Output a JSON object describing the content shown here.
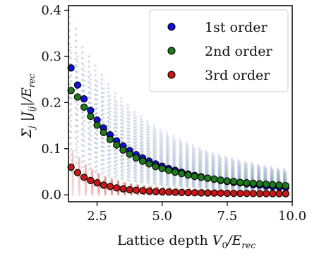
{
  "chart_data": {
    "type": "scatter",
    "title": "",
    "xlabel": "Lattice depth V₀/E_rec",
    "ylabel": "Σ_j |J_ij|/E_rec",
    "xlim": [
      1.4,
      10.0
    ],
    "ylim": [
      -0.015,
      0.41
    ],
    "xticks": [
      2.5,
      5.0,
      7.5,
      10.0
    ],
    "xtick_labels": [
      "2.5",
      "5.0",
      "7.5",
      "10.0"
    ],
    "yticks": [
      0.0,
      0.1,
      0.2,
      0.3,
      0.4
    ],
    "ytick_labels": [
      "0.0",
      "0.1",
      "0.2",
      "0.3",
      "0.4"
    ],
    "grid": false,
    "legend_position": "top-right",
    "x": [
      1.5,
      1.75,
      2.0,
      2.25,
      2.5,
      2.75,
      3.0,
      3.25,
      3.5,
      3.75,
      4.0,
      4.25,
      4.5,
      4.75,
      5.0,
      5.25,
      5.5,
      5.75,
      6.0,
      6.25,
      6.5,
      6.75,
      7.0,
      7.25,
      7.5,
      7.75,
      8.0,
      8.25,
      8.5,
      8.75,
      9.0,
      9.25,
      9.5,
      9.75
    ],
    "series": [
      {
        "name": "1st order",
        "color": "#1010d8",
        "values": [
          0.275,
          0.238,
          0.208,
          0.183,
          0.162,
          0.145,
          0.13,
          0.117,
          0.106,
          0.096,
          0.087,
          0.08,
          0.073,
          0.067,
          0.062,
          0.057,
          0.053,
          0.049,
          0.045,
          0.042,
          0.039,
          0.036,
          0.034,
          0.031,
          0.029,
          0.027,
          0.026,
          0.024,
          0.022,
          0.021,
          0.019,
          0.018,
          0.017,
          0.016
        ],
        "spread_top": [
          0.4,
          0.36,
          0.32,
          0.3,
          0.28,
          0.26,
          0.24,
          0.22,
          0.21,
          0.195,
          0.18,
          0.17,
          0.16,
          0.15,
          0.14,
          0.135,
          0.128,
          0.12,
          0.113,
          0.107,
          0.101,
          0.096,
          0.091,
          0.087,
          0.083,
          0.079,
          0.075,
          0.072,
          0.069,
          0.066,
          0.063,
          0.061,
          0.058,
          0.056
        ],
        "spread_bottom": [
          0.08,
          0.07,
          0.06,
          0.055,
          0.05,
          0.046,
          0.042,
          0.039,
          0.036,
          0.033,
          0.031,
          0.029,
          0.027,
          0.025,
          0.023,
          0.022,
          0.021,
          0.02,
          0.019,
          0.018,
          0.017,
          0.016,
          0.015,
          0.014,
          0.014,
          0.013,
          0.012,
          0.012,
          0.011,
          0.011,
          0.01,
          0.01,
          0.009,
          0.009
        ]
      },
      {
        "name": "2nd order",
        "color": "#1e7a1e",
        "values": [
          0.226,
          0.212,
          0.19,
          0.17,
          0.151,
          0.135,
          0.12,
          0.108,
          0.097,
          0.088,
          0.08,
          0.073,
          0.067,
          0.061,
          0.057,
          0.053,
          0.049,
          0.046,
          0.043,
          0.04,
          0.038,
          0.036,
          0.034,
          0.032,
          0.03,
          0.029,
          0.027,
          0.026,
          0.025,
          0.024,
          0.023,
          0.022,
          0.021,
          0.02
        ],
        "spread_top": [
          0.32,
          0.3,
          0.28,
          0.26,
          0.245,
          0.23,
          0.215,
          0.2,
          0.19,
          0.178,
          0.168,
          0.158,
          0.148,
          0.14,
          0.133,
          0.125,
          0.118,
          0.112,
          0.106,
          0.1,
          0.095,
          0.09,
          0.085,
          0.081,
          0.077,
          0.073,
          0.07,
          0.067,
          0.064,
          0.061,
          0.058,
          0.055,
          0.053,
          0.05
        ],
        "spread_bottom": [
          0.05,
          0.045,
          0.04,
          0.037,
          0.034,
          0.031,
          0.029,
          0.027,
          0.025,
          0.023,
          0.022,
          0.02,
          0.019,
          0.018,
          0.017,
          0.016,
          0.015,
          0.014,
          0.014,
          0.013,
          0.012,
          0.012,
          0.011,
          0.011,
          0.01,
          0.01,
          0.01,
          0.009,
          0.009,
          0.009,
          0.008,
          0.008,
          0.008,
          0.008
        ]
      },
      {
        "name": "3rd order",
        "color": "#c81818",
        "values": [
          0.06,
          0.048,
          0.038,
          0.031,
          0.026,
          0.021,
          0.018,
          0.015,
          0.013,
          0.011,
          0.01,
          0.009,
          0.008,
          0.007,
          0.0065,
          0.006,
          0.0055,
          0.005,
          0.0048,
          0.0045,
          0.0042,
          0.004,
          0.0038,
          0.0036,
          0.0034,
          0.0032,
          0.003,
          0.0029,
          0.0028,
          0.0027,
          0.0026,
          0.0025,
          0.0024,
          0.0023
        ],
        "spread_top": [
          0.095,
          0.08,
          0.065,
          0.055,
          0.046,
          0.039,
          0.034,
          0.03,
          0.026,
          0.023,
          0.021,
          0.019,
          0.017,
          0.016,
          0.015,
          0.014,
          0.013,
          0.012,
          0.012,
          0.011,
          0.011,
          0.01,
          0.01,
          0.01,
          0.009,
          0.009,
          0.009,
          0.009,
          0.008,
          0.008,
          0.008,
          0.008,
          0.008,
          0.008
        ],
        "spread_bottom": [
          0.0,
          0.0,
          0.0,
          0.0,
          0.0,
          0.0,
          0.0,
          0.0,
          0.0,
          0.0,
          0.0,
          0.0,
          0.0,
          0.0,
          0.0,
          0.0,
          0.0,
          0.0,
          0.0,
          0.0,
          0.0,
          0.0,
          0.0,
          0.0,
          0.0,
          0.0,
          0.0,
          0.0,
          0.0,
          0.0,
          0.0,
          0.0,
          0.0,
          0.0
        ]
      }
    ]
  }
}
